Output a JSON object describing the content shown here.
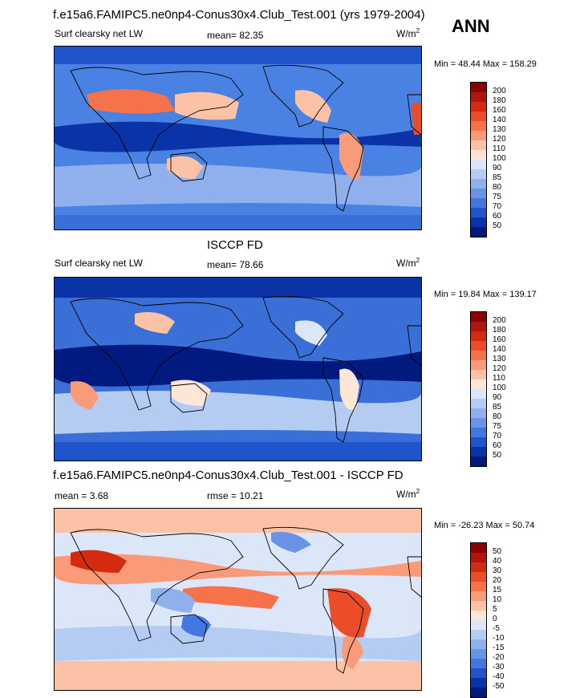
{
  "season": "ANN",
  "panels": [
    {
      "title": "f.e15a6.FAMIPC5.ne0np4-Conus30x4.Club_Test.001 (yrs 1979-2004)",
      "left_label": "Surf clearsky net LW",
      "stats": [
        {
          "label": "mean=",
          "value": "82.35"
        }
      ],
      "units": "W/m",
      "units_sup": "2",
      "min_label": "Min =",
      "min": "48.44",
      "max_label": "Max =",
      "max": "158.29",
      "levels": [
        "200",
        "180",
        "160",
        "140",
        "130",
        "120",
        "110",
        "100",
        "90",
        "85",
        "80",
        "75",
        "70",
        "60",
        "50"
      ],
      "colors": [
        "#8b0000",
        "#b3140d",
        "#d42a0f",
        "#ea4d27",
        "#f5724a",
        "#f99a78",
        "#fcc2a6",
        "#fde6d6",
        "#dbe6f8",
        "#b5ccf2",
        "#8fb0ec",
        "#6993e6",
        "#4276e0",
        "#1f54cc",
        "#0b33a8",
        "#001a80"
      ]
    },
    {
      "title": "ISCCP FD",
      "left_label": "Surf clearsky net LW",
      "stats": [
        {
          "label": "mean=",
          "value": "78.66"
        }
      ],
      "units": "W/m",
      "units_sup": "2",
      "min_label": "Min =",
      "min": "19.84",
      "max_label": "Max =",
      "max": "139.17",
      "levels": [
        "200",
        "180",
        "160",
        "140",
        "130",
        "120",
        "110",
        "100",
        "90",
        "85",
        "80",
        "75",
        "70",
        "60",
        "50"
      ],
      "colors": [
        "#8b0000",
        "#b3140d",
        "#d42a0f",
        "#ea4d27",
        "#f5724a",
        "#f99a78",
        "#fcc2a6",
        "#fde6d6",
        "#dbe6f8",
        "#b5ccf2",
        "#8fb0ec",
        "#6993e6",
        "#4276e0",
        "#1f54cc",
        "#0b33a8",
        "#001a80"
      ]
    },
    {
      "title": "f.e15a6.FAMIPC5.ne0np4-Conus30x4.Club_Test.001 - ISCCP FD",
      "left_label": "",
      "stats": [
        {
          "label": "mean =",
          "value": "3.68"
        },
        {
          "label": "rmse =",
          "value": "10.21"
        }
      ],
      "units": "W/m",
      "units_sup": "2",
      "min_label": "Min =",
      "min": "-26.23",
      "max_label": "Max =",
      "max": "50.74",
      "levels": [
        "50",
        "40",
        "30",
        "20",
        "15",
        "10",
        "5",
        "0",
        "-5",
        "-10",
        "-15",
        "-20",
        "-30",
        "-40",
        "-50"
      ],
      "colors": [
        "#8b0000",
        "#b3140d",
        "#d42a0f",
        "#ea4d27",
        "#f5724a",
        "#f99a78",
        "#fcc2a6",
        "#fde6d6",
        "#dbe6f8",
        "#b5ccf2",
        "#8fb0ec",
        "#6993e6",
        "#4276e0",
        "#1f54cc",
        "#0b33a8",
        "#001a80"
      ]
    }
  ],
  "chart_data": [
    {
      "type": "heatmap",
      "title": "f.e15a6.FAMIPC5.ne0np4-Conus30x4.Club_Test.001 (yrs 1979-2004)",
      "field": "Surf clearsky net LW",
      "units": "W/m2",
      "season": "ANN",
      "mean": 82.35,
      "min": 48.44,
      "max": 158.29,
      "contour_levels": [
        50,
        60,
        70,
        75,
        80,
        85,
        90,
        100,
        110,
        120,
        130,
        140,
        160,
        180,
        200
      ]
    },
    {
      "type": "heatmap",
      "title": "ISCCP FD",
      "field": "Surf clearsky net LW",
      "units": "W/m2",
      "mean": 78.66,
      "min": 19.84,
      "max": 139.17,
      "contour_levels": [
        50,
        60,
        70,
        75,
        80,
        85,
        90,
        100,
        110,
        120,
        130,
        140,
        160,
        180,
        200
      ]
    },
    {
      "type": "heatmap",
      "title": "f.e15a6.FAMIPC5.ne0np4-Conus30x4.Club_Test.001 - ISCCP FD",
      "units": "W/m2",
      "mean": 3.68,
      "rmse": 10.21,
      "min": -26.23,
      "max": 50.74,
      "contour_levels": [
        -50,
        -40,
        -30,
        -20,
        -15,
        -10,
        -5,
        0,
        5,
        10,
        15,
        20,
        30,
        40,
        50
      ]
    }
  ]
}
